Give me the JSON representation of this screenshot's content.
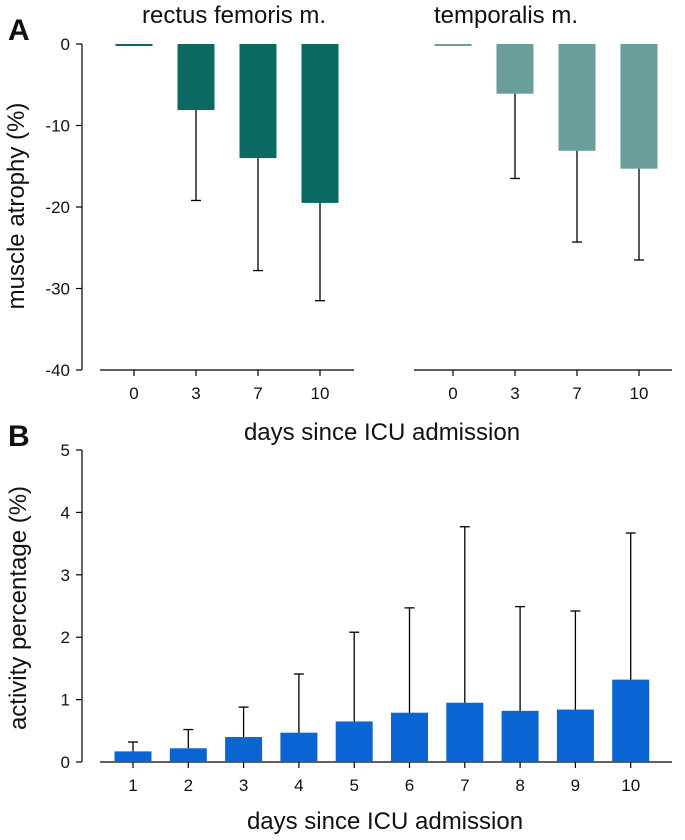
{
  "chart_data": [
    {
      "type": "bar",
      "panel": "A",
      "ylabel": "muscle atrophy (%)",
      "xlabel": "days since ICU admission",
      "ylim": [
        -40,
        0
      ],
      "yticks": [
        0,
        -10,
        -20,
        -30,
        -40
      ],
      "grid": false,
      "subplots": [
        {
          "title": "rectus femoris m.",
          "categories": [
            "0",
            "3",
            "7",
            "10"
          ],
          "values": [
            0,
            -8.1,
            -14.0,
            -19.5
          ],
          "errors": [
            0,
            11.1,
            13.8,
            12.0
          ],
          "color": "#0a6a62"
        },
        {
          "title": "temporalis m.",
          "categories": [
            "0",
            "3",
            "7",
            "10"
          ],
          "values": [
            0,
            -6.1,
            -13.1,
            -15.3
          ],
          "errors": [
            0,
            10.4,
            11.2,
            11.2
          ],
          "color": "#6a9e9c"
        }
      ]
    },
    {
      "type": "bar",
      "panel": "B",
      "ylabel": "activity percentage (%)",
      "xlabel": "days since ICU admission",
      "ylim": [
        0,
        5
      ],
      "yticks": [
        0,
        1,
        2,
        3,
        4,
        5
      ],
      "grid": false,
      "categories": [
        "1",
        "2",
        "3",
        "4",
        "5",
        "6",
        "7",
        "8",
        "9",
        "10"
      ],
      "values": [
        0.17,
        0.22,
        0.4,
        0.47,
        0.65,
        0.79,
        0.95,
        0.82,
        0.84,
        1.32
      ],
      "errors": [
        0.15,
        0.3,
        0.48,
        0.94,
        1.43,
        1.68,
        2.82,
        1.67,
        1.58,
        2.35
      ],
      "color": "#0a64d2"
    }
  ]
}
